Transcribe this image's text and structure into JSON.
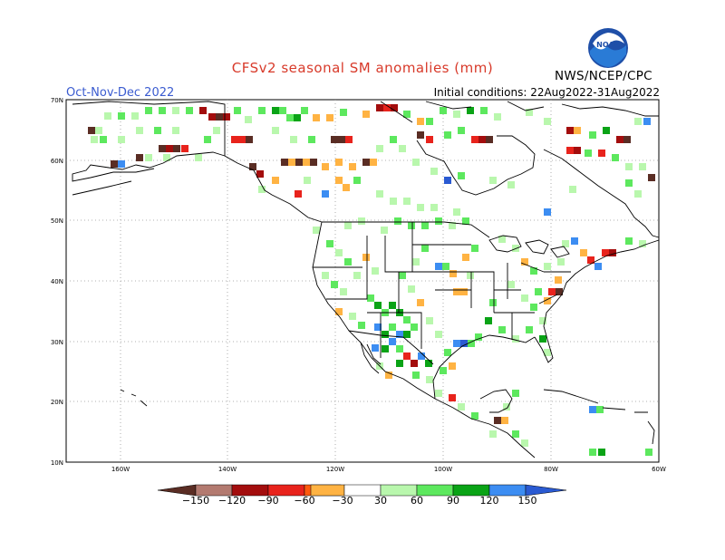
{
  "header": {
    "title": "CFSv2 seasonal SM anomalies (mm)",
    "period": "Oct-Nov-Dec 2022",
    "initial_conditions": "Initial conditions: 22Aug2022-31Aug2022",
    "agency": "NWS/NCEP/CPC"
  },
  "logo": {
    "icon": "noaa-logo-icon",
    "text": "NOAA"
  },
  "axes": {
    "lat_labels": [
      "70N",
      "60N",
      "50N",
      "40N",
      "30N",
      "20N",
      "10N"
    ],
    "lon_labels": [
      "160W",
      "140W",
      "120W",
      "100W",
      "80W",
      "60W"
    ]
  },
  "colorbar": {
    "labels": [
      "−150",
      "−120",
      "−90",
      "−60",
      "−30",
      "30",
      "60",
      "90",
      "120",
      "150"
    ],
    "colors": [
      "#5a2d24",
      "#b37a70",
      "#a30d0d",
      "#e8231c",
      "#ff5a0e",
      "#ffb343",
      "#ffffff",
      "#b9f7ad",
      "#5de85e",
      "#0aa316",
      "#3c8df2",
      "#2a5ad2"
    ]
  }
}
